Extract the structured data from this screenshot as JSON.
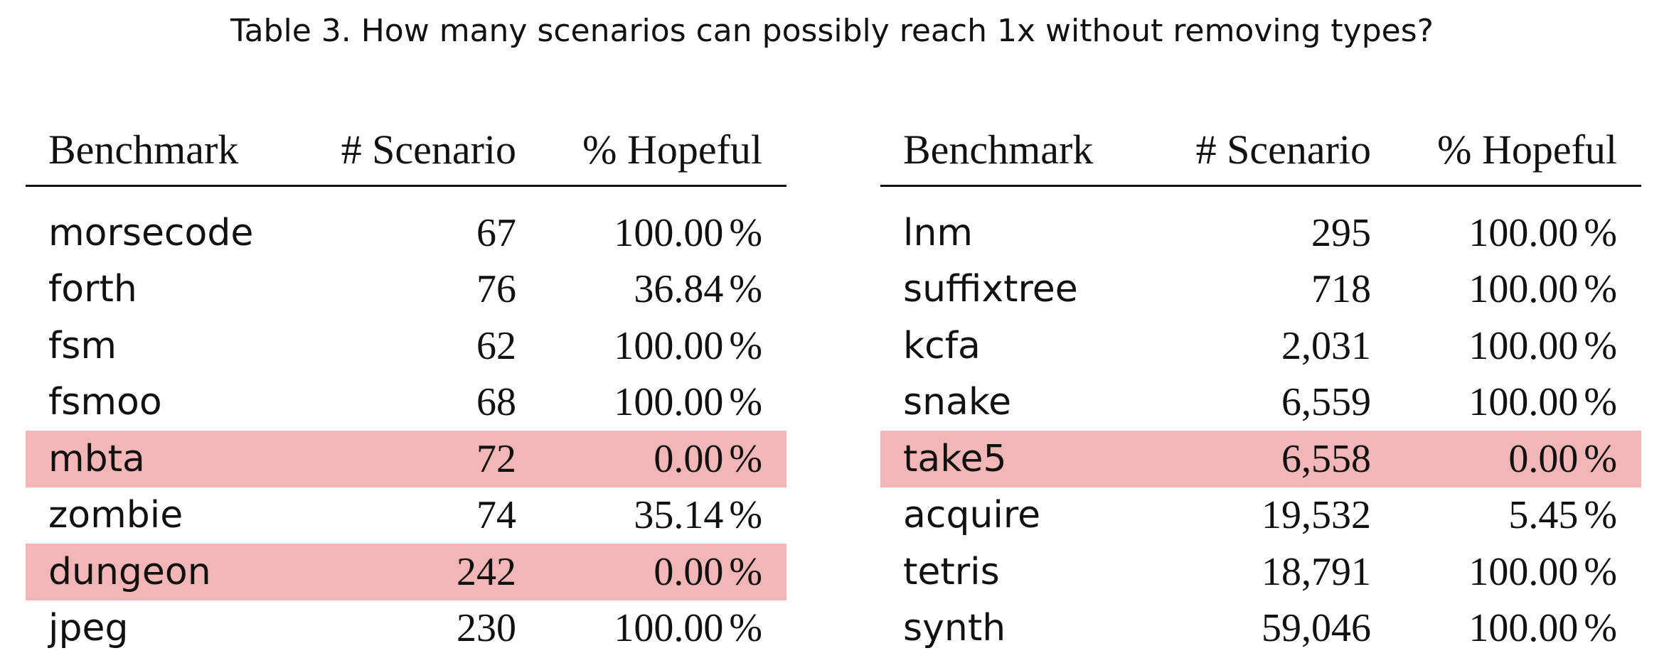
{
  "caption": "Table 3.  How many scenarios can possibly reach 1x without removing types?",
  "colors": {
    "highlight": "#f3b6b6",
    "text": "#111111"
  },
  "tables": [
    {
      "headers": [
        "Benchmark",
        "# Scenario",
        "% Hopeful"
      ],
      "rows": [
        {
          "benchmark": "morsecode",
          "scenarios": "67",
          "hopeful": "100.00",
          "highlight": false
        },
        {
          "benchmark": "forth",
          "scenarios": "76",
          "hopeful": "36.84",
          "highlight": false
        },
        {
          "benchmark": "fsm",
          "scenarios": "62",
          "hopeful": "100.00",
          "highlight": false
        },
        {
          "benchmark": "fsmoo",
          "scenarios": "68",
          "hopeful": "100.00",
          "highlight": false
        },
        {
          "benchmark": "mbta",
          "scenarios": "72",
          "hopeful": "0.00",
          "highlight": true
        },
        {
          "benchmark": "zombie",
          "scenarios": "74",
          "hopeful": "35.14",
          "highlight": false
        },
        {
          "benchmark": "dungeon",
          "scenarios": "242",
          "hopeful": "0.00",
          "highlight": true
        },
        {
          "benchmark": "jpeg",
          "scenarios": "230",
          "hopeful": "100.00",
          "highlight": false
        }
      ]
    },
    {
      "headers": [
        "Benchmark",
        "# Scenario",
        "% Hopeful"
      ],
      "rows": [
        {
          "benchmark": "lnm",
          "scenarios": "295",
          "hopeful": "100.00",
          "highlight": false
        },
        {
          "benchmark": "suffixtree",
          "scenarios": "718",
          "hopeful": "100.00",
          "highlight": false
        },
        {
          "benchmark": "kcfa",
          "scenarios": "2,031",
          "hopeful": "100.00",
          "highlight": false
        },
        {
          "benchmark": "snake",
          "scenarios": "6,559",
          "hopeful": "100.00",
          "highlight": false
        },
        {
          "benchmark": "take5",
          "scenarios": "6,558",
          "hopeful": "0.00",
          "highlight": true
        },
        {
          "benchmark": "acquire",
          "scenarios": "19,532",
          "hopeful": "5.45",
          "highlight": false
        },
        {
          "benchmark": "tetris",
          "scenarios": "18,791",
          "hopeful": "100.00",
          "highlight": false
        },
        {
          "benchmark": "synth",
          "scenarios": "59,046",
          "hopeful": "100.00",
          "highlight": false
        }
      ]
    }
  ],
  "percent_sign": "%"
}
